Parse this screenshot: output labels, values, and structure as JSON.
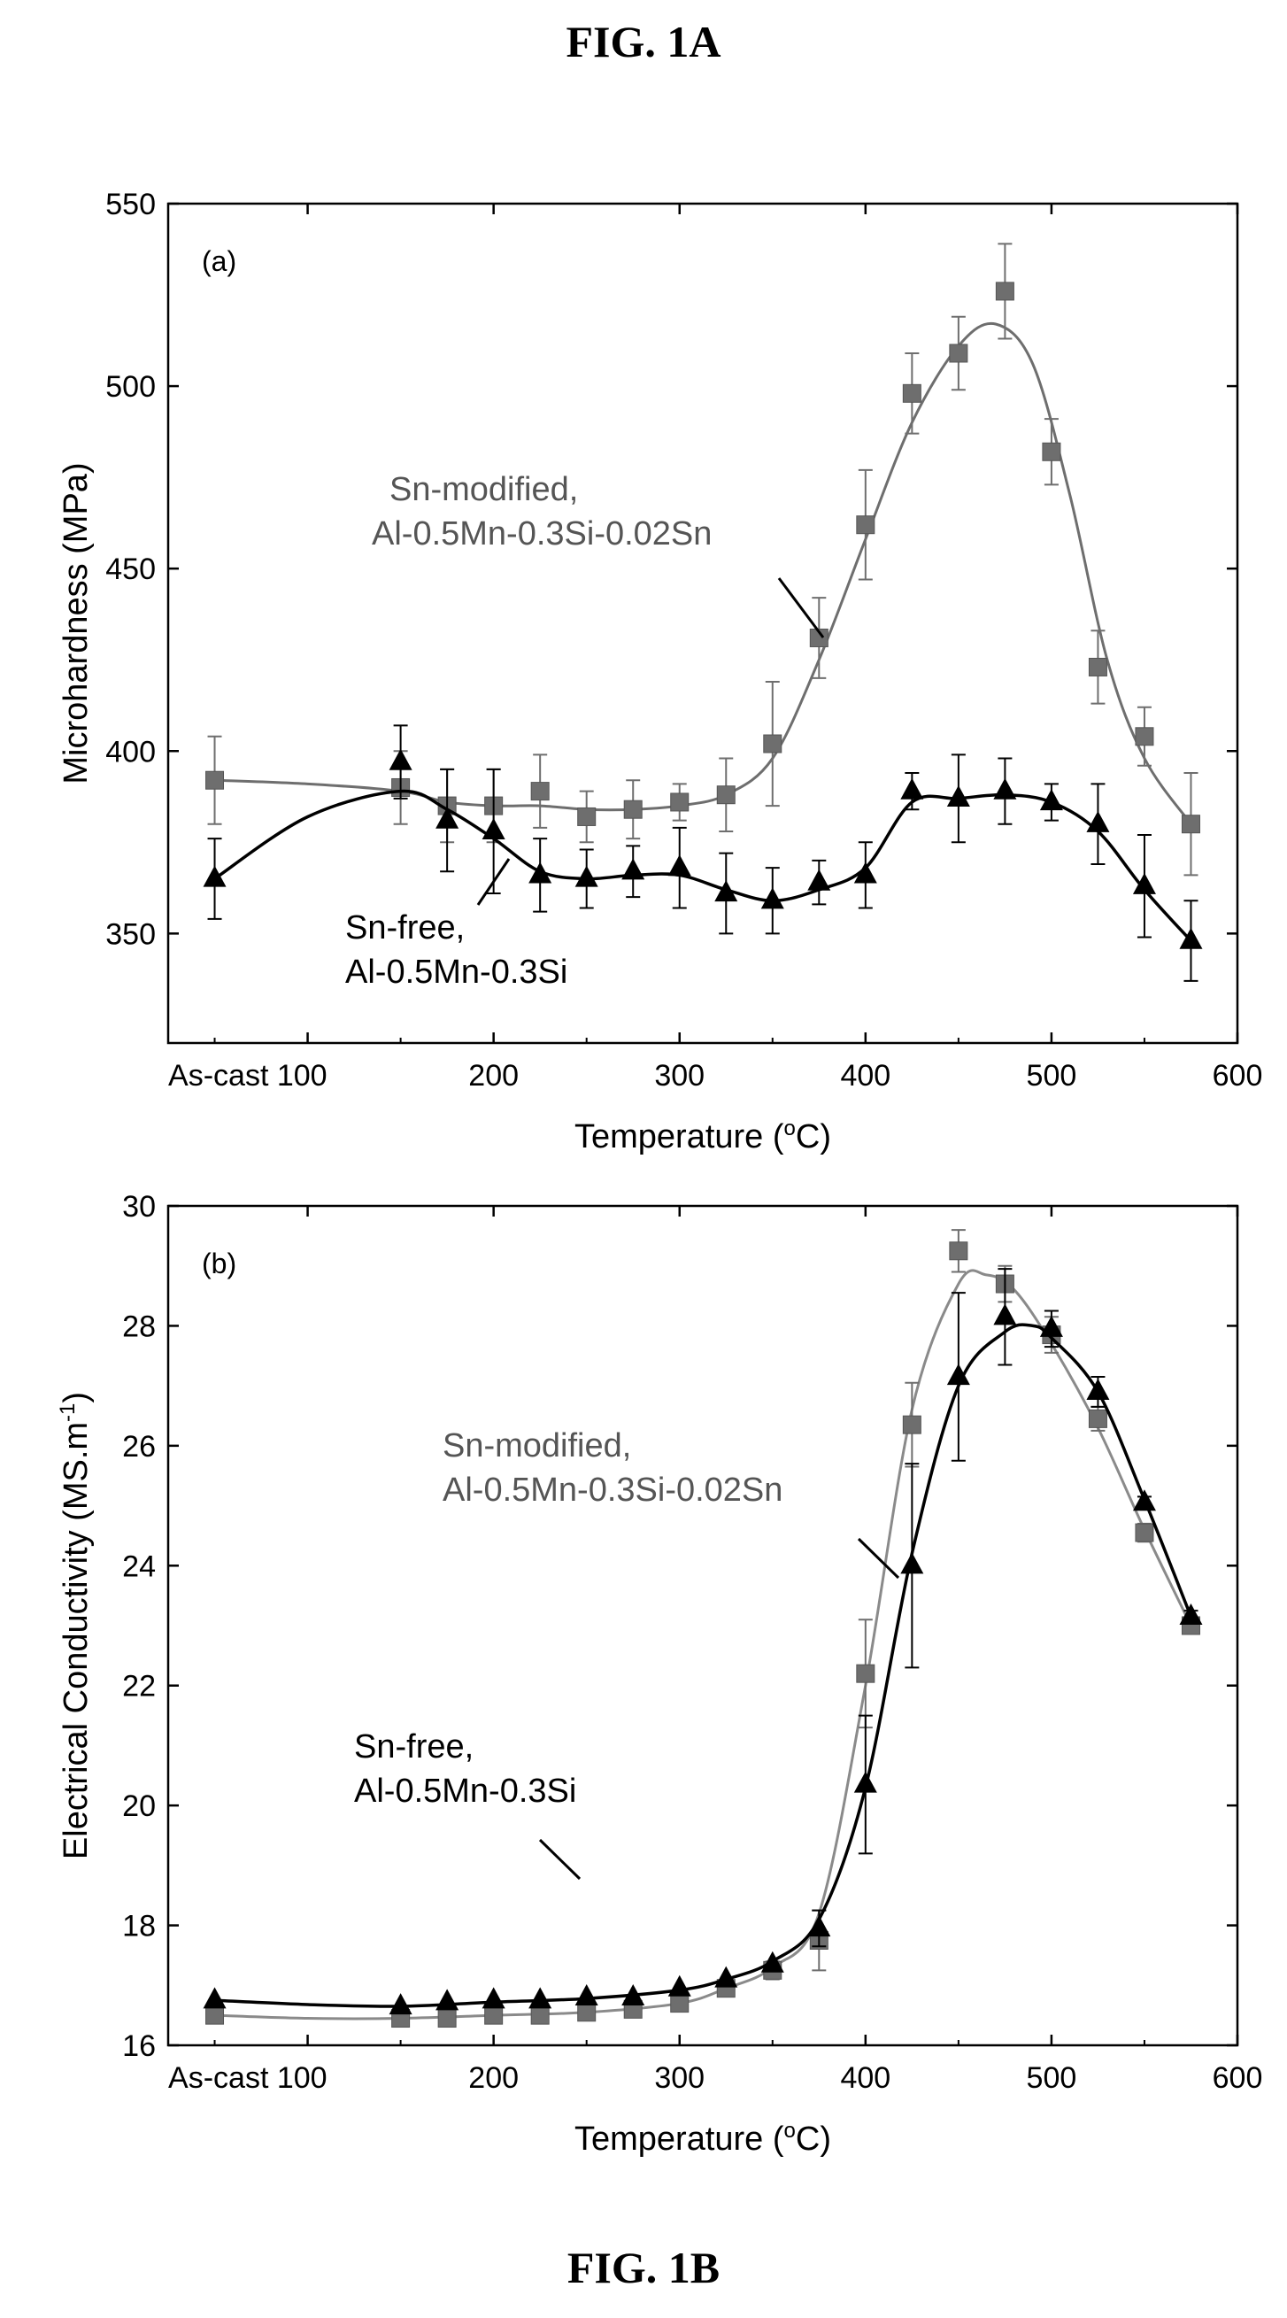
{
  "figure": {
    "title_top": "FIG. 1A",
    "title_bottom": "FIG. 1B"
  },
  "chart_data": [
    {
      "type": "line",
      "panel_label": "(a)",
      "xlabel": "Temperature (°C)",
      "xlabel_main": "Temperature (",
      "xlabel_sup": "o",
      "xlabel_end": "C)",
      "ylabel": "Microhardness (MPa)",
      "xlim": [
        25,
        600
      ],
      "ylim": [
        320,
        550
      ],
      "x_ticks": [
        100,
        200,
        300,
        400,
        500,
        600
      ],
      "x_tick_labels": [
        "As-cast 100",
        "200",
        "300",
        "400",
        "500",
        "600"
      ],
      "y_ticks": [
        350,
        400,
        450,
        500,
        550
      ],
      "y_tick_labels": [
        "350",
        "400",
        "450",
        "500",
        "550"
      ],
      "series": [
        {
          "name": "Sn-modified, Al-0.5Mn-0.3Si-0.02Sn",
          "label_line1": "Sn-modified,",
          "label_line2": "Al-0.5Mn-0.3Si-0.02Sn",
          "marker": "square",
          "color": "#6e6e6e",
          "x": [
            50,
            150,
            175,
            200,
            225,
            250,
            275,
            300,
            325,
            350,
            375,
            400,
            425,
            450,
            475,
            500,
            525,
            550,
            575
          ],
          "y": [
            392,
            390,
            385,
            385,
            389,
            382,
            384,
            386,
            388,
            402,
            431,
            462,
            498,
            509,
            526,
            482,
            423,
            404,
            380
          ],
          "err": [
            12,
            10,
            10,
            10,
            10,
            7,
            8,
            5,
            10,
            17,
            11,
            15,
            11,
            10,
            13,
            9,
            10,
            8,
            14
          ],
          "curve_x": [
            50,
            100,
            150,
            175,
            200,
            225,
            250,
            275,
            300,
            325,
            350,
            375,
            400,
            425,
            450,
            470,
            490,
            510,
            530,
            550,
            575
          ],
          "curve_y": [
            392,
            391,
            389,
            386,
            385,
            385,
            384,
            384,
            385,
            388,
            398,
            425,
            458,
            490,
            511,
            517,
            506,
            470,
            425,
            398,
            380
          ]
        },
        {
          "name": "Sn-free, Al-0.5Mn-0.3Si",
          "label_line1": "Sn-free,",
          "label_line2": "Al-0.5Mn-0.3Si",
          "marker": "triangle",
          "color": "#000000",
          "x": [
            50,
            150,
            175,
            200,
            225,
            250,
            275,
            300,
            325,
            350,
            375,
            400,
            425,
            450,
            475,
            500,
            525,
            550,
            575
          ],
          "y": [
            365,
            397,
            381,
            378,
            366,
            365,
            367,
            368,
            361,
            359,
            364,
            366,
            389,
            387,
            389,
            386,
            380,
            363,
            348
          ],
          "err": [
            11,
            10,
            14,
            17,
            10,
            8,
            7,
            11,
            11,
            9,
            6,
            9,
            5,
            12,
            9,
            5,
            11,
            14,
            11
          ],
          "curve_x": [
            50,
            100,
            150,
            175,
            200,
            225,
            250,
            275,
            300,
            325,
            350,
            375,
            400,
            425,
            450,
            475,
            500,
            525,
            550,
            575
          ],
          "curve_y": [
            365,
            382,
            389,
            384,
            376,
            367,
            365,
            366,
            366,
            362,
            359,
            362,
            368,
            386,
            387,
            388,
            386,
            378,
            362,
            348
          ]
        }
      ]
    },
    {
      "type": "line",
      "panel_label": "(b)",
      "xlabel": "Temperature (°C)",
      "xlabel_main": "Temperature (",
      "xlabel_sup": "o",
      "xlabel_end": "C)",
      "ylabel": "Electrical Conductivity (MS.m⁻¹)",
      "ylabel_main": "Electrical Conductivity (MS.m",
      "ylabel_sup": "-1",
      "ylabel_end": ")",
      "xlim": [
        25,
        600
      ],
      "ylim": [
        16,
        30
      ],
      "x_ticks": [
        100,
        200,
        300,
        400,
        500,
        600
      ],
      "x_tick_labels": [
        "As-cast 100",
        "200",
        "300",
        "400",
        "500",
        "600"
      ],
      "y_ticks": [
        16,
        18,
        20,
        22,
        24,
        26,
        28,
        30
      ],
      "y_tick_labels": [
        "16",
        "18",
        "20",
        "22",
        "24",
        "26",
        "28",
        "30"
      ],
      "series": [
        {
          "name": "Sn-modified, Al-0.5Mn-0.3Si-0.02Sn",
          "label_line1": "Sn-modified,",
          "label_line2": "Al-0.5Mn-0.3Si-0.02Sn",
          "marker": "square",
          "color": "#6e6e6e",
          "x": [
            50,
            150,
            175,
            200,
            225,
            250,
            275,
            300,
            325,
            350,
            375,
            400,
            425,
            450,
            475,
            500,
            525,
            550,
            575
          ],
          "y": [
            16.5,
            16.45,
            16.45,
            16.5,
            16.5,
            16.55,
            16.6,
            16.7,
            16.95,
            17.25,
            17.75,
            22.2,
            26.35,
            29.25,
            28.7,
            27.85,
            26.45,
            24.55,
            23.0
          ],
          "err": [
            0,
            0,
            0,
            0,
            0,
            0,
            0,
            0,
            0,
            0.15,
            0.5,
            0.9,
            0.7,
            0.35,
            0.3,
            0.3,
            0.2,
            0.15,
            0.1
          ],
          "curve_x": [
            50,
            100,
            150,
            200,
            250,
            300,
            325,
            350,
            375,
            400,
            425,
            450,
            465,
            480,
            500,
            525,
            550,
            575
          ],
          "curve_y": [
            16.5,
            16.45,
            16.45,
            16.5,
            16.55,
            16.7,
            16.95,
            17.3,
            18.2,
            22.0,
            26.6,
            28.7,
            28.85,
            28.6,
            27.7,
            26.3,
            24.6,
            23.0
          ],
          "curve_color": "#8a8a8a"
        },
        {
          "name": "Sn-free, Al-0.5Mn-0.3Si",
          "label_line1": "Sn-free,",
          "label_line2": "Al-0.5Mn-0.3Si",
          "marker": "triangle",
          "color": "#000000",
          "x": [
            50,
            150,
            175,
            200,
            225,
            250,
            275,
            300,
            325,
            350,
            375,
            400,
            425,
            450,
            475,
            500,
            525,
            550,
            575
          ],
          "y": [
            16.75,
            16.65,
            16.72,
            16.75,
            16.75,
            16.8,
            16.8,
            16.95,
            17.1,
            17.35,
            17.95,
            20.35,
            24.0,
            27.15,
            28.15,
            27.95,
            26.9,
            25.05,
            23.15
          ],
          "err": [
            0,
            0,
            0,
            0,
            0,
            0,
            0,
            0,
            0,
            0,
            0.3,
            1.15,
            1.7,
            1.4,
            0.8,
            0.3,
            0.25,
            0.1,
            0.1
          ],
          "curve_x": [
            50,
            100,
            150,
            200,
            250,
            300,
            325,
            350,
            375,
            400,
            425,
            450,
            475,
            490,
            500,
            525,
            550,
            575
          ],
          "curve_y": [
            16.75,
            16.68,
            16.65,
            16.72,
            16.78,
            16.92,
            17.1,
            17.4,
            18.1,
            20.3,
            24.2,
            27.0,
            27.9,
            28.0,
            27.8,
            26.9,
            25.1,
            23.15
          ],
          "curve_color": "#000000"
        }
      ]
    }
  ]
}
